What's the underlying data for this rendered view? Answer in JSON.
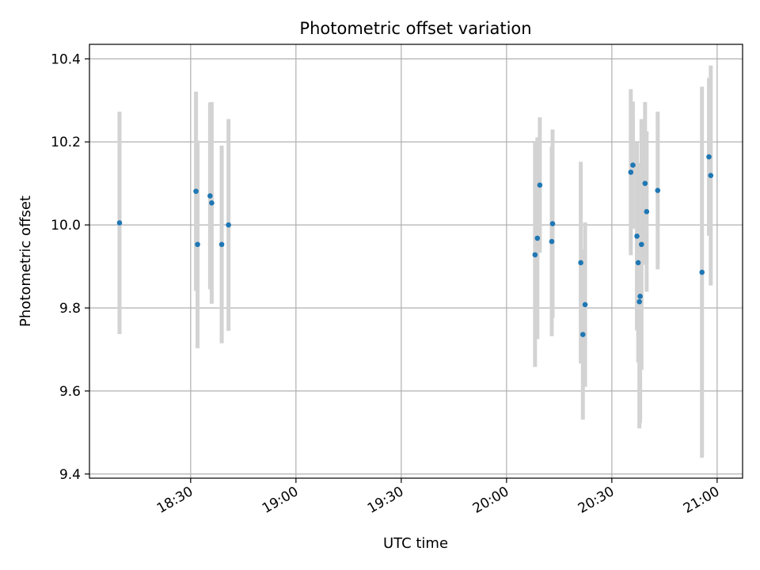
{
  "chart_data": {
    "type": "scatter",
    "title": "Photometric offset variation",
    "xlabel": "UTC time",
    "ylabel": "Photometric offset",
    "x_unit": "HH:MM (UTC)",
    "xlim": [
      "18:01:10",
      "21:07:15"
    ],
    "ylim": [
      9.39,
      10.435
    ],
    "x_ticks": [
      "18:30",
      "19:00",
      "19:30",
      "20:00",
      "20:30",
      "21:00"
    ],
    "y_ticks": [
      9.4,
      9.6,
      9.8,
      10.0,
      10.2,
      10.4
    ],
    "grid": true,
    "colors": {
      "point": "#1f77b4",
      "errorbar": "#d3d3d3",
      "grid": "#b0b0b0",
      "frame": "#000000"
    },
    "series": [
      {
        "marker": "point",
        "error_bars": "vertical",
        "points": [
          {
            "x": "18:09:44",
            "y": 10.005,
            "err": 0.268
          },
          {
            "x": "18:31:31",
            "y": 10.081,
            "err": 0.24
          },
          {
            "x": "18:31:58",
            "y": 9.953,
            "err": 0.25
          },
          {
            "x": "18:35:32",
            "y": 10.07,
            "err": 0.225
          },
          {
            "x": "18:36:00",
            "y": 10.053,
            "err": 0.243
          },
          {
            "x": "18:38:51",
            "y": 9.953,
            "err": 0.238
          },
          {
            "x": "18:40:47",
            "y": 10.0,
            "err": 0.255
          },
          {
            "x": "20:08:07",
            "y": 9.928,
            "err": 0.27
          },
          {
            "x": "20:08:47",
            "y": 9.968,
            "err": 0.243
          },
          {
            "x": "20:09:29",
            "y": 10.096,
            "err": 0.163
          },
          {
            "x": "20:12:53",
            "y": 9.96,
            "err": 0.228
          },
          {
            "x": "20:13:07",
            "y": 10.003,
            "err": 0.227
          },
          {
            "x": "20:21:09",
            "y": 9.909,
            "err": 0.243
          },
          {
            "x": "20:21:45",
            "y": 9.736,
            "err": 0.205
          },
          {
            "x": "20:22:23",
            "y": 9.808,
            "err": 0.198
          },
          {
            "x": "20:35:24",
            "y": 10.127,
            "err": 0.2
          },
          {
            "x": "20:36:00",
            "y": 10.144,
            "err": 0.153
          },
          {
            "x": "20:37:09",
            "y": 9.973,
            "err": 0.227
          },
          {
            "x": "20:37:30",
            "y": 9.909,
            "err": 0.24
          },
          {
            "x": "20:37:51",
            "y": 9.815,
            "err": 0.305
          },
          {
            "x": "20:38:04",
            "y": 9.828,
            "err": 0.305
          },
          {
            "x": "20:38:27",
            "y": 9.953,
            "err": 0.302
          },
          {
            "x": "20:39:28",
            "y": 10.1,
            "err": 0.196
          },
          {
            "x": "20:39:55",
            "y": 10.032,
            "err": 0.193
          },
          {
            "x": "20:43:04",
            "y": 10.083,
            "err": 0.19
          },
          {
            "x": "20:55:41",
            "y": 9.886,
            "err": 0.447
          },
          {
            "x": "20:57:40",
            "y": 10.164,
            "err": 0.19
          },
          {
            "x": "20:58:11",
            "y": 10.119,
            "err": 0.265
          }
        ]
      }
    ]
  }
}
